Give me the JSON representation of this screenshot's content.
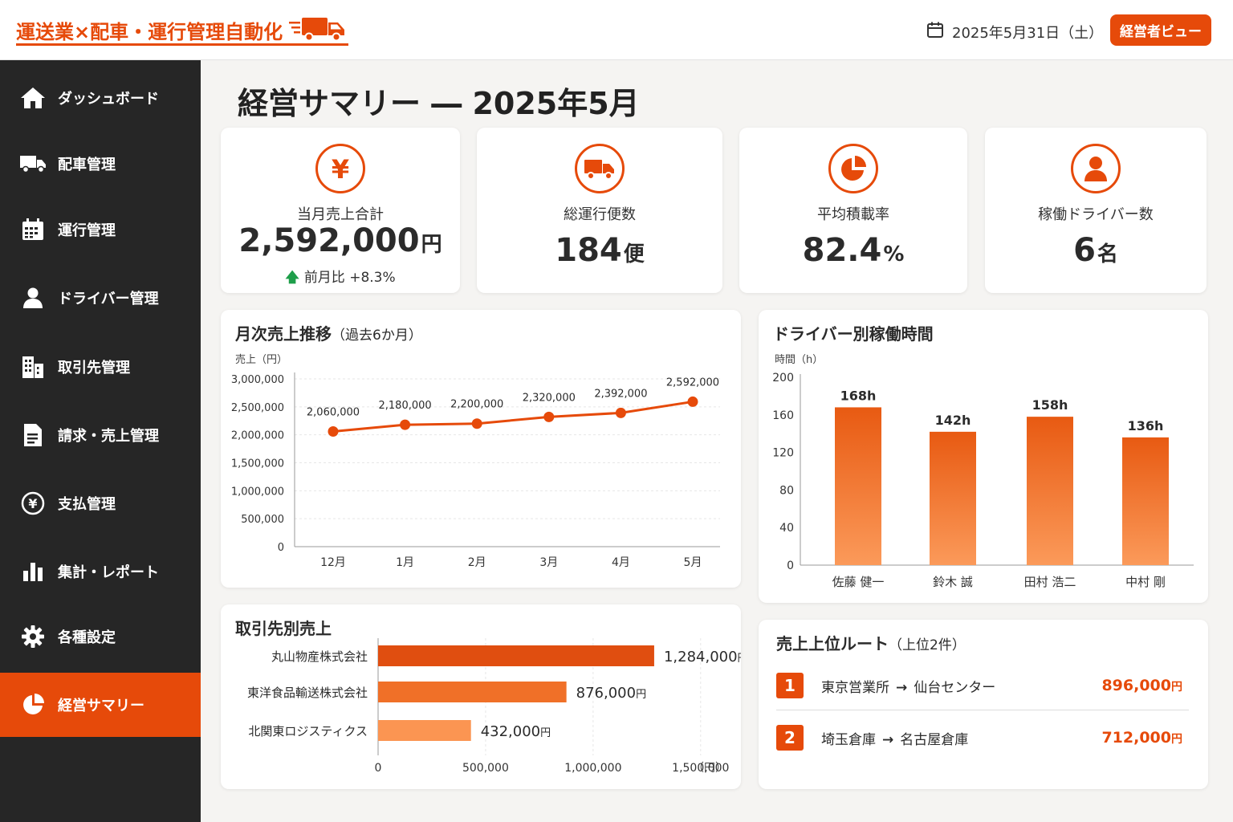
{
  "header": {
    "app_title": "運送業×配車・運行管理自動化",
    "date": "2025年5月31日（土）",
    "view_button": "経営者ビュー"
  },
  "sidebar": {
    "items": [
      {
        "label": "ダッシュボード",
        "icon": "home-icon"
      },
      {
        "label": "配車管理",
        "icon": "truck-icon"
      },
      {
        "label": "運行管理",
        "icon": "calendar-icon"
      },
      {
        "label": "ドライバー管理",
        "icon": "person-icon"
      },
      {
        "label": "取引先管理",
        "icon": "building-icon"
      },
      {
        "label": "請求・売上管理",
        "icon": "document-icon"
      },
      {
        "label": "支払管理",
        "icon": "yen-coin-icon"
      },
      {
        "label": "集計・レポート",
        "icon": "bar-chart-icon"
      },
      {
        "label": "各種設定",
        "icon": "gear-icon"
      },
      {
        "label": "経営サマリー",
        "icon": "pie-chart-icon",
        "active": true
      }
    ]
  },
  "page": {
    "title": "経営サマリー ― 2025年5月"
  },
  "kpis": [
    {
      "label": "当月売上合計",
      "value": "2,592,000",
      "unit": "円",
      "sub_label": "前月比 +8.3%",
      "icon": "yen-icon"
    },
    {
      "label": "総運行便数",
      "value": "184",
      "unit": "便",
      "icon": "truck-icon"
    },
    {
      "label": "平均積載率",
      "value": "82.4",
      "unit": "%",
      "icon": "pie-chart-icon"
    },
    {
      "label": "稼働ドライバー数",
      "value": "6",
      "unit": "名",
      "icon": "person-icon"
    }
  ],
  "monthly_sales": {
    "title": "月次売上推移",
    "title_note": "（過去6か月）",
    "unit_label": "売上（円）"
  },
  "driver_hours": {
    "title": "ドライバー別稼働時間",
    "unit_label": "時間（h）"
  },
  "client_sales": {
    "title": "取引先別売上",
    "unit_label": "（円）"
  },
  "top_routes": {
    "title": "売上上位ルート",
    "title_note": "（上位2件）",
    "items": [
      {
        "rank": "1",
        "from": "東京営業所",
        "to": "仙台センター",
        "amount": "896,000",
        "unit": "円"
      },
      {
        "rank": "2",
        "from": "埼玉倉庫",
        "to": "名古屋倉庫",
        "amount": "712,000",
        "unit": "円"
      }
    ]
  },
  "colors": {
    "accent": "#e64a0a",
    "sidebar_bg": "#262626",
    "positive": "#1e9e4a"
  },
  "chart_data": [
    {
      "type": "line",
      "title": "月次売上推移（過去6か月）",
      "ylabel": "売上（円）",
      "categories": [
        "12月",
        "1月",
        "2月",
        "3月",
        "4月",
        "5月"
      ],
      "values": [
        2060000,
        2180000,
        2200000,
        2320000,
        2392000,
        2592000
      ],
      "value_labels": [
        "2,060,000",
        "2,180,000",
        "2,200,000",
        "2,320,000",
        "2,392,000",
        "2,592,000"
      ],
      "y_ticks": [
        "3,000,000",
        "2,500,000",
        "2,000,000",
        "1,500,000",
        "1,000,000",
        "500,000",
        "0"
      ],
      "ylim": [
        0,
        3000000
      ],
      "grid": true
    },
    {
      "type": "bar",
      "title": "ドライバー別稼働時間",
      "ylabel": "時間（h）",
      "categories": [
        "佐藤 健一",
        "鈴木 誠",
        "田村 浩二",
        "中村 剛"
      ],
      "values": [
        168,
        142,
        158,
        136
      ],
      "value_labels": [
        "168h",
        "142h",
        "158h",
        "136h"
      ],
      "y_ticks": [
        "200",
        "160",
        "120",
        "80",
        "40",
        "0"
      ],
      "ylim": [
        0,
        200
      ]
    },
    {
      "type": "bar",
      "orientation": "horizontal",
      "title": "取引先別売上",
      "xlabel": "（円）",
      "categories": [
        "丸山物産株式会社",
        "東洋食品輸送株式会社",
        "北関東ロジスティクス"
      ],
      "values": [
        1284000,
        876000,
        432000
      ],
      "value_labels": [
        "1,284,000",
        "876,000",
        "432,000"
      ],
      "value_unit": "円",
      "x_ticks": [
        "0",
        "500,000",
        "1,000,000",
        "1,500,000"
      ],
      "xlim": [
        0,
        1500000
      ],
      "bar_colors": [
        "#e04e10",
        "#f07028",
        "#fb9552"
      ]
    }
  ]
}
